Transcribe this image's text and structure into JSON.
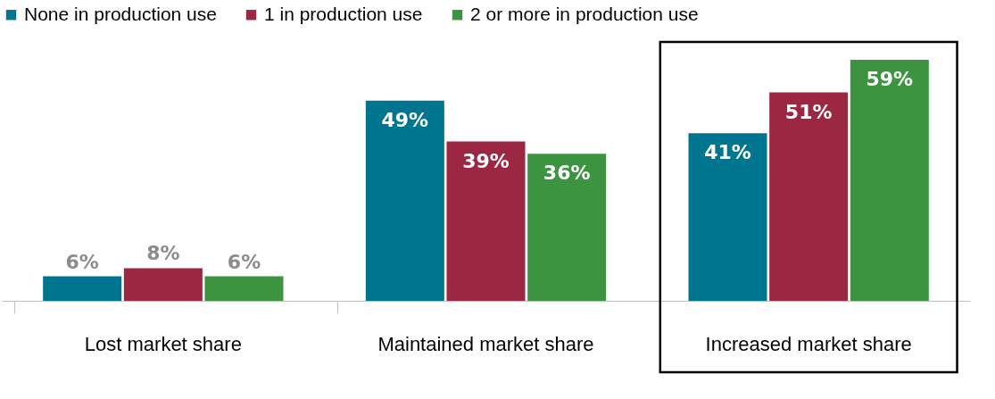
{
  "chart_data": {
    "type": "bar",
    "categories": [
      "Lost market share",
      "Maintained market share",
      "Increased market share"
    ],
    "series": [
      {
        "name": "None in production use",
        "color": "#00758f",
        "values": [
          6,
          49,
          41
        ],
        "value_labels": [
          "6%",
          "49%",
          "41%"
        ]
      },
      {
        "name": "1 in production use",
        "color": "#9b2743",
        "values": [
          8,
          39,
          51
        ],
        "value_labels": [
          "8%",
          "39%",
          "51%"
        ]
      },
      {
        "name": "2 or more in production use",
        "color": "#3c9441",
        "values": [
          6,
          36,
          59
        ],
        "value_labels": [
          "6%",
          "36%",
          "59%"
        ]
      }
    ],
    "legend": "top",
    "grid": false
  }
}
